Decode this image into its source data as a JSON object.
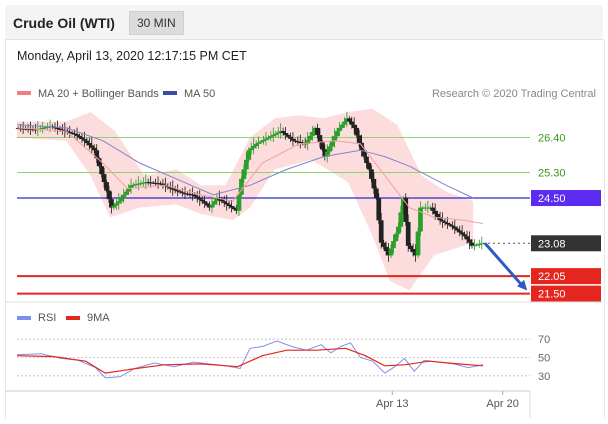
{
  "header": {
    "title": "Crude Oil (WTI)",
    "timeframe": "30 MIN",
    "datetime": "Monday, April 13, 2020 12:17:15 PM CET"
  },
  "chart_data": [
    {
      "type": "candlestick",
      "legend": [
        {
          "label": "MA 20 + Bollinger Bands",
          "color": "#f08080"
        },
        {
          "label": "MA 50",
          "color": "#3a4aa8"
        }
      ],
      "legend_placement": "top-left",
      "source": "Research © 2020 Trading Central",
      "price_range": [
        21.3,
        27.2
      ],
      "levels": [
        {
          "value": 26.4,
          "label": "26.40",
          "kind": "resistance"
        },
        {
          "value": 25.3,
          "label": "25.30",
          "kind": "resistance"
        },
        {
          "value": 24.5,
          "label": "24.50",
          "kind": "pivot"
        },
        {
          "value": 23.08,
          "label": "23.08",
          "kind": "last"
        },
        {
          "value": 22.05,
          "label": "22.05",
          "kind": "support"
        },
        {
          "value": 21.5,
          "label": "21.50",
          "kind": "support"
        }
      ],
      "price_path": [
        [
          0,
          26.7
        ],
        [
          8,
          26.65
        ],
        [
          14,
          26.75
        ],
        [
          20,
          26.6
        ],
        [
          24,
          26.5
        ],
        [
          28,
          26.3
        ],
        [
          32,
          26.0
        ],
        [
          36,
          25.0
        ],
        [
          39,
          24.2
        ],
        [
          42,
          24.4
        ],
        [
          47,
          24.9
        ],
        [
          53,
          25.0
        ],
        [
          59,
          24.95
        ],
        [
          63,
          24.8
        ],
        [
          68,
          24.65
        ],
        [
          72,
          24.6
        ],
        [
          76,
          24.4
        ],
        [
          79,
          24.2
        ],
        [
          82,
          24.5
        ],
        [
          86,
          24.3
        ],
        [
          90,
          24.1
        ],
        [
          92,
          25.1
        ],
        [
          95,
          26.0
        ],
        [
          98,
          26.2
        ],
        [
          103,
          26.4
        ],
        [
          108,
          26.6
        ],
        [
          113,
          26.3
        ],
        [
          118,
          26.2
        ],
        [
          122,
          26.7
        ],
        [
          126,
          25.8
        ],
        [
          131,
          26.6
        ],
        [
          135,
          27.0
        ],
        [
          138,
          26.7
        ],
        [
          141,
          26.0
        ],
        [
          144,
          25.4
        ],
        [
          147,
          24.5
        ],
        [
          149,
          23.1
        ],
        [
          152,
          22.7
        ],
        [
          156,
          23.6
        ],
        [
          158,
          24.5
        ],
        [
          160,
          23.0
        ],
        [
          163,
          22.7
        ],
        [
          165,
          24.2
        ],
        [
          169,
          24.2
        ],
        [
          173,
          23.8
        ],
        [
          178,
          23.6
        ],
        [
          183,
          23.3
        ],
        [
          186,
          23.0
        ],
        [
          190,
          23.08
        ]
      ],
      "ma20_path": [
        [
          0,
          26.7
        ],
        [
          20,
          26.6
        ],
        [
          35,
          25.6
        ],
        [
          45,
          24.8
        ],
        [
          60,
          24.9
        ],
        [
          75,
          24.6
        ],
        [
          88,
          24.4
        ],
        [
          100,
          25.6
        ],
        [
          115,
          26.2
        ],
        [
          130,
          26.3
        ],
        [
          140,
          26.2
        ],
        [
          150,
          25.2
        ],
        [
          160,
          24.2
        ],
        [
          170,
          23.9
        ],
        [
          182,
          23.8
        ],
        [
          190,
          23.7
        ]
      ],
      "ma50_path": [
        [
          0,
          26.8
        ],
        [
          20,
          26.7
        ],
        [
          35,
          26.3
        ],
        [
          50,
          25.6
        ],
        [
          65,
          25.1
        ],
        [
          80,
          24.6
        ],
        [
          95,
          24.9
        ],
        [
          110,
          25.4
        ],
        [
          125,
          25.8
        ],
        [
          140,
          26.0
        ],
        [
          150,
          25.8
        ],
        [
          160,
          25.5
        ],
        [
          175,
          24.9
        ],
        [
          186,
          24.5
        ]
      ],
      "bollinger_upper_path": [
        [
          0,
          26.9
        ],
        [
          20,
          26.9
        ],
        [
          30,
          27.2
        ],
        [
          40,
          26.6
        ],
        [
          52,
          25.2
        ],
        [
          65,
          25.4
        ],
        [
          75,
          24.9
        ],
        [
          85,
          24.9
        ],
        [
          95,
          26.4
        ],
        [
          105,
          27.0
        ],
        [
          115,
          27.1
        ],
        [
          125,
          27.0
        ],
        [
          135,
          27.2
        ],
        [
          145,
          27.3
        ],
        [
          155,
          26.8
        ],
        [
          165,
          25.2
        ],
        [
          175,
          24.7
        ],
        [
          186,
          24.4
        ]
      ],
      "bollinger_lower_path": [
        [
          0,
          26.4
        ],
        [
          20,
          26.3
        ],
        [
          30,
          25.2
        ],
        [
          38,
          23.9
        ],
        [
          50,
          24.2
        ],
        [
          65,
          24.3
        ],
        [
          75,
          24.0
        ],
        [
          88,
          23.8
        ],
        [
          95,
          24.2
        ],
        [
          105,
          25.4
        ],
        [
          120,
          25.7
        ],
        [
          135,
          25.0
        ],
        [
          145,
          23.3
        ],
        [
          152,
          21.9
        ],
        [
          160,
          21.6
        ],
        [
          170,
          22.7
        ],
        [
          186,
          23.1
        ]
      ],
      "x_ticks": [
        {
          "label": "Apr 13",
          "index": 153
        },
        {
          "label": "Apr 20",
          "index": 198
        }
      ],
      "projection": {
        "from": [
          190,
          23.08
        ],
        "to": [
          208,
          21.6
        ]
      }
    },
    {
      "type": "line",
      "legend": [
        {
          "label": "RSI",
          "color": "#7b8ff0"
        },
        {
          "label": "9MA",
          "color": "#e5261f"
        }
      ],
      "ylim": [
        20,
        80
      ],
      "y_ticks": [
        30,
        50,
        70
      ],
      "series": [
        {
          "name": "RSI",
          "points": [
            [
              0,
              53
            ],
            [
              10,
              54
            ],
            [
              18,
              49
            ],
            [
              25,
              47
            ],
            [
              32,
              39
            ],
            [
              36,
              28
            ],
            [
              42,
              29
            ],
            [
              48,
              38
            ],
            [
              56,
              44
            ],
            [
              64,
              40
            ],
            [
              72,
              45
            ],
            [
              78,
              43
            ],
            [
              85,
              41
            ],
            [
              91,
              38
            ],
            [
              95,
              60
            ],
            [
              100,
              62
            ],
            [
              106,
              68
            ],
            [
              112,
              62
            ],
            [
              118,
              58
            ],
            [
              124,
              64
            ],
            [
              128,
              55
            ],
            [
              132,
              62
            ],
            [
              136,
              66
            ],
            [
              140,
              50
            ],
            [
              145,
              46
            ],
            [
              150,
              33
            ],
            [
              154,
              40
            ],
            [
              158,
              49
            ],
            [
              162,
              35
            ],
            [
              166,
              47
            ],
            [
              172,
              45
            ],
            [
              178,
              43
            ],
            [
              184,
              39
            ],
            [
              190,
              42
            ]
          ]
        },
        {
          "name": "9MA",
          "points": [
            [
              0,
              52
            ],
            [
              15,
              51
            ],
            [
              28,
              46
            ],
            [
              36,
              33
            ],
            [
              46,
              37
            ],
            [
              60,
              42
            ],
            [
              75,
              43
            ],
            [
              90,
              40
            ],
            [
              100,
              52
            ],
            [
              110,
              58
            ],
            [
              122,
              58
            ],
            [
              134,
              60
            ],
            [
              142,
              52
            ],
            [
              150,
              41
            ],
            [
              158,
              42
            ],
            [
              168,
              46
            ],
            [
              180,
              43
            ],
            [
              190,
              41
            ]
          ]
        }
      ]
    }
  ]
}
